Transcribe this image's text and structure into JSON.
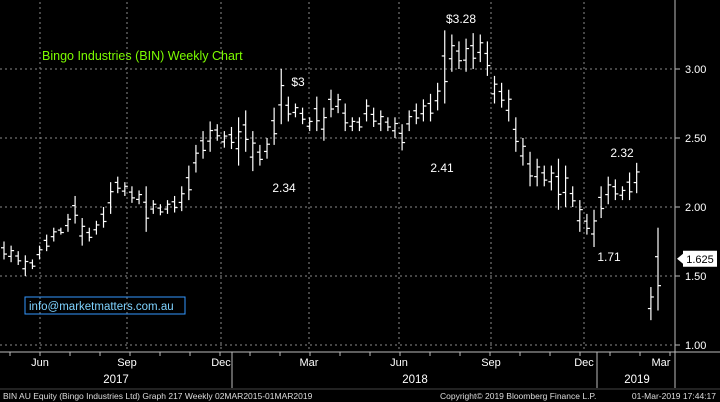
{
  "chart_data": {
    "type": "ohlc",
    "title": "Bingo Industries (BIN) Weekly Chart",
    "title_color": "#7CFC00",
    "ylim": [
      0.95,
      3.45
    ],
    "yticks": [
      "1.00",
      "1.50",
      "2.00",
      "2.50",
      "3.00"
    ],
    "ytick_values": [
      1.0,
      1.5,
      2.0,
      2.5,
      3.0
    ],
    "month_ticks": [
      "Jun",
      "Sep",
      "Dec",
      "Mar",
      "Jun",
      "Sep",
      "Dec",
      "Mar"
    ],
    "year_ticks": [
      "2017",
      "2018",
      "2019"
    ],
    "grid": true,
    "last_price": "1.625",
    "annotations": [
      {
        "label": "$3.28",
        "value": 3.28
      },
      {
        "label": "$3",
        "value": 3.0
      },
      {
        "label": "2.34",
        "value": 2.34
      },
      {
        "label": "2.41",
        "value": 2.41
      },
      {
        "label": "2.32",
        "value": 2.32
      },
      {
        "label": "1.71",
        "value": 1.71
      }
    ],
    "bars": [
      {
        "h": 1.75,
        "l": 1.62
      },
      {
        "h": 1.72,
        "l": 1.6
      },
      {
        "h": 1.68,
        "l": 1.58
      },
      {
        "h": 1.65,
        "l": 1.5
      },
      {
        "h": 1.62,
        "l": 1.55
      },
      {
        "h": 1.72,
        "l": 1.62
      },
      {
        "h": 1.8,
        "l": 1.68
      },
      {
        "h": 1.85,
        "l": 1.75
      },
      {
        "h": 1.85,
        "l": 1.8
      },
      {
        "h": 1.95,
        "l": 1.82
      },
      {
        "h": 2.08,
        "l": 1.88
      },
      {
        "h": 1.92,
        "l": 1.72
      },
      {
        "h": 1.85,
        "l": 1.75
      },
      {
        "h": 1.9,
        "l": 1.8
      },
      {
        "h": 2.0,
        "l": 1.85
      },
      {
        "h": 2.18,
        "l": 1.95
      },
      {
        "h": 2.22,
        "l": 2.1
      },
      {
        "h": 2.18,
        "l": 2.08
      },
      {
        "h": 2.15,
        "l": 2.03
      },
      {
        "h": 2.12,
        "l": 2.02
      },
      {
        "h": 2.15,
        "l": 1.82
      },
      {
        "h": 2.05,
        "l": 1.95
      },
      {
        "h": 2.02,
        "l": 1.94
      },
      {
        "h": 2.05,
        "l": 1.95
      },
      {
        "h": 2.08,
        "l": 1.96
      },
      {
        "h": 2.15,
        "l": 1.97
      },
      {
        "h": 2.3,
        "l": 2.05
      },
      {
        "h": 2.45,
        "l": 2.25
      },
      {
        "h": 2.55,
        "l": 2.35
      },
      {
        "h": 2.62,
        "l": 2.4
      },
      {
        "h": 2.6,
        "l": 2.48
      },
      {
        "h": 2.55,
        "l": 2.43
      },
      {
        "h": 2.58,
        "l": 2.42
      },
      {
        "h": 2.65,
        "l": 2.3
      },
      {
        "h": 2.7,
        "l": 2.4
      },
      {
        "h": 2.55,
        "l": 2.26
      },
      {
        "h": 2.45,
        "l": 2.3
      },
      {
        "h": 2.5,
        "l": 2.35
      },
      {
        "h": 2.72,
        "l": 2.45
      },
      {
        "h": 3.0,
        "l": 2.6
      },
      {
        "h": 2.8,
        "l": 2.62
      },
      {
        "h": 2.75,
        "l": 2.65
      },
      {
        "h": 2.72,
        "l": 2.6
      },
      {
        "h": 2.65,
        "l": 2.55
      },
      {
        "h": 2.8,
        "l": 2.55
      },
      {
        "h": 2.72,
        "l": 2.48
      },
      {
        "h": 2.85,
        "l": 2.65
      },
      {
        "h": 2.82,
        "l": 2.68
      },
      {
        "h": 2.75,
        "l": 2.55
      },
      {
        "h": 2.65,
        "l": 2.55
      },
      {
        "h": 2.65,
        "l": 2.55
      },
      {
        "h": 2.78,
        "l": 2.62
      },
      {
        "h": 2.72,
        "l": 2.58
      },
      {
        "h": 2.7,
        "l": 2.55
      },
      {
        "h": 2.65,
        "l": 2.55
      },
      {
        "h": 2.65,
        "l": 2.5
      },
      {
        "h": 2.6,
        "l": 2.41
      },
      {
        "h": 2.7,
        "l": 2.55
      },
      {
        "h": 2.75,
        "l": 2.6
      },
      {
        "h": 2.78,
        "l": 2.62
      },
      {
        "h": 2.82,
        "l": 2.62
      },
      {
        "h": 2.9,
        "l": 2.7
      },
      {
        "h": 3.28,
        "l": 2.75
      },
      {
        "h": 3.25,
        "l": 2.98
      },
      {
        "h": 3.2,
        "l": 3.0
      },
      {
        "h": 3.22,
        "l": 2.98
      },
      {
        "h": 3.26,
        "l": 3.0
      },
      {
        "h": 3.25,
        "l": 3.05
      },
      {
        "h": 3.2,
        "l": 2.95
      },
      {
        "h": 2.95,
        "l": 2.75
      },
      {
        "h": 2.9,
        "l": 2.72
      },
      {
        "h": 2.85,
        "l": 2.62
      },
      {
        "h": 2.65,
        "l": 2.4
      },
      {
        "h": 2.5,
        "l": 2.3
      },
      {
        "h": 2.4,
        "l": 2.15
      },
      {
        "h": 2.35,
        "l": 2.15
      },
      {
        "h": 2.3,
        "l": 2.15
      },
      {
        "h": 2.3,
        "l": 2.12
      },
      {
        "h": 2.35,
        "l": 1.98
      },
      {
        "h": 2.3,
        "l": 2.0
      },
      {
        "h": 2.15,
        "l": 2.0
      },
      {
        "h": 2.05,
        "l": 1.82
      },
      {
        "h": 1.95,
        "l": 1.8
      },
      {
        "h": 1.98,
        "l": 1.71
      },
      {
        "h": 2.15,
        "l": 1.92
      },
      {
        "h": 2.22,
        "l": 2.02
      },
      {
        "h": 2.2,
        "l": 2.05
      },
      {
        "h": 2.15,
        "l": 2.05
      },
      {
        "h": 2.25,
        "l": 2.05
      },
      {
        "h": 2.32,
        "l": 2.1
      },
      {
        "h": null,
        "l": null
      },
      {
        "h": 1.42,
        "l": 1.18
      },
      {
        "h": 1.85,
        "l": 1.25
      }
    ]
  },
  "info_box": "info@marketmatters.com.au",
  "footer": {
    "left": "BIN AU Equity (Bingo Industries Ltd) Graph 217  Weekly 02MAR2015-01MAR2019",
    "middle": "Copyright© 2019 Bloomberg Finance L.P.",
    "right": "01-Mar-2019 17:44:17"
  },
  "colors": {
    "background": "#000000",
    "bars": "#ffffff",
    "grid": "#8a8a8a",
    "info_border": "#3399ff",
    "info_text": "#7fd3ff"
  }
}
